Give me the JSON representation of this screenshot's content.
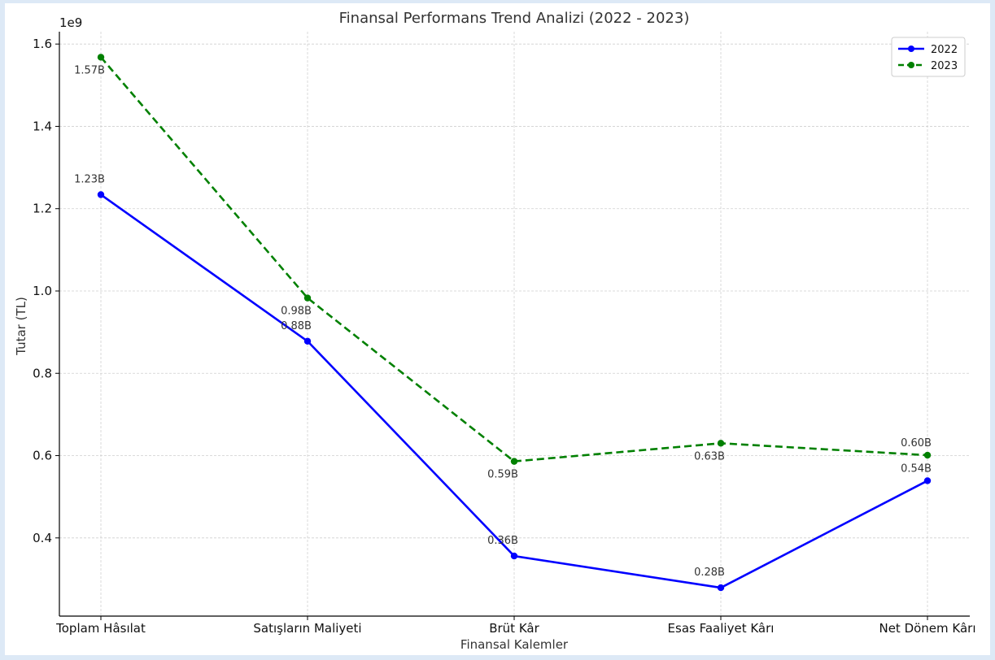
{
  "chart_data": {
    "type": "line",
    "title": "Finansal Performans Trend Analizi (2022 - 2023)",
    "xlabel": "Finansal Kalemler",
    "ylabel": "Tutar (TL)",
    "y_offset_label": "1e9",
    "categories": [
      "Toplam Hâsılat",
      "Satışların Maliyeti",
      "Brüt Kâr",
      "Esas Faaliyet Kârı",
      "Net Dönem Kârı"
    ],
    "ylim": [
      0.21,
      1.63
    ],
    "yticks": [
      0.4,
      0.6,
      0.8,
      1.0,
      1.2,
      1.4,
      1.6
    ],
    "ytick_labels": [
      "0.4",
      "0.6",
      "0.8",
      "1.0",
      "1.2",
      "1.4",
      "1.6"
    ],
    "grid": true,
    "legend_position": "top-right",
    "series": [
      {
        "name": "2022",
        "color": "#0000ff",
        "style": "solid",
        "values": [
          1.234,
          0.878,
          0.356,
          0.279,
          0.539
        ],
        "labels": [
          "1.23B",
          "0.88B",
          "0.36B",
          "0.28B",
          "0.54B"
        ]
      },
      {
        "name": "2023",
        "color": "#008000",
        "style": "dashed",
        "values": [
          1.568,
          0.983,
          0.586,
          0.63,
          0.601
        ],
        "labels": [
          "1.57B",
          "0.98B",
          "0.59B",
          "0.63B",
          "0.60B"
        ]
      }
    ]
  }
}
